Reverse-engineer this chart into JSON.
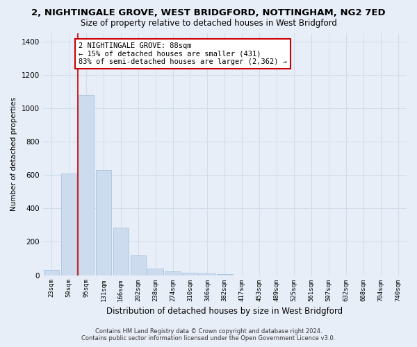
{
  "title": "2, NIGHTINGALE GROVE, WEST BRIDGFORD, NOTTINGHAM, NG2 7ED",
  "subtitle": "Size of property relative to detached houses in West Bridgford",
  "xlabel": "Distribution of detached houses by size in West Bridgford",
  "ylabel": "Number of detached properties",
  "bin_labels": [
    "23sqm",
    "59sqm",
    "95sqm",
    "131sqm",
    "166sqm",
    "202sqm",
    "238sqm",
    "274sqm",
    "310sqm",
    "346sqm",
    "382sqm",
    "417sqm",
    "453sqm",
    "489sqm",
    "525sqm",
    "561sqm",
    "597sqm",
    "632sqm",
    "668sqm",
    "704sqm",
    "740sqm"
  ],
  "bar_heights": [
    30,
    610,
    1080,
    630,
    285,
    120,
    40,
    25,
    15,
    10,
    5,
    0,
    0,
    0,
    0,
    0,
    0,
    0,
    0,
    0,
    0
  ],
  "bar_color": "#ccdcee",
  "bar_edge_color": "#aac4de",
  "vline_color": "#cc0000",
  "ylim": [
    0,
    1450
  ],
  "yticks": [
    0,
    200,
    400,
    600,
    800,
    1000,
    1200,
    1400
  ],
  "annotation_text": "2 NIGHTINGALE GROVE: 88sqm\n← 15% of detached houses are smaller (431)\n83% of semi-detached houses are larger (2,362) →",
  "annotation_box_color": "#ffffff",
  "annotation_box_edge": "#cc0000",
  "footer_line1": "Contains HM Land Registry data © Crown copyright and database right 2024.",
  "footer_line2": "Contains public sector information licensed under the Open Government Licence v3.0.",
  "grid_color": "#d0dcea",
  "background_color": "#e8eef8",
  "plot_bg_color": "#e8eef8",
  "title_fontsize": 9.5,
  "subtitle_fontsize": 8.5
}
